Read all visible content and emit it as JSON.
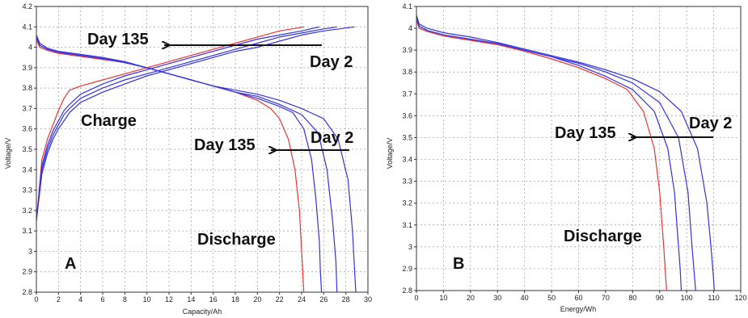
{
  "chart_data": [
    {
      "type": "line",
      "panel_label": "A",
      "xlabel": "Capacity/Ah",
      "ylabel": "Voltage/V",
      "xlim": [
        0,
        30
      ],
      "ylim": [
        2.8,
        4.2
      ],
      "xticks": [
        "0",
        "2",
        "4",
        "6",
        "8",
        "10",
        "12",
        "14",
        "16",
        "18",
        "20",
        "22",
        "24",
        "26",
        "28",
        "30"
      ],
      "yticks": [
        "2.8",
        "2.9",
        "3",
        "3.1",
        "3.2",
        "3.3",
        "3.4",
        "3.5",
        "3.6",
        "3.7",
        "3.8",
        "3.9",
        "4",
        "4.1",
        "4.2"
      ],
      "grid": true,
      "colors": {
        "day135": "#ee3333",
        "day2": "#3333dd"
      },
      "annotations": {
        "day135_charge": "Day 135",
        "day2_charge": "Day 2",
        "day135_discharge": "Day 135",
        "day2_discharge": "Day 2",
        "charge": "Charge",
        "discharge": "Discharge"
      },
      "series": [
        {
          "kind": "charge",
          "color_key": "day135",
          "x": [
            0,
            0.5,
            1,
            1.5,
            2,
            2.5,
            3,
            4,
            6,
            8,
            10,
            12,
            14,
            16,
            18,
            20,
            22,
            24.2
          ],
          "y": [
            3.15,
            3.45,
            3.55,
            3.62,
            3.69,
            3.75,
            3.79,
            3.81,
            3.84,
            3.87,
            3.9,
            3.93,
            3.96,
            3.99,
            4.02,
            4.05,
            4.08,
            4.1
          ]
        },
        {
          "kind": "charge",
          "color_key": "day2",
          "x": [
            0,
            0.5,
            1,
            1.5,
            2,
            2.5,
            3,
            4,
            6,
            8,
            10,
            12,
            14,
            16,
            18,
            20,
            22,
            24,
            25.6
          ],
          "y": [
            3.15,
            3.42,
            3.52,
            3.59,
            3.64,
            3.69,
            3.72,
            3.77,
            3.82,
            3.86,
            3.89,
            3.92,
            3.95,
            3.98,
            4.01,
            4.04,
            4.06,
            4.08,
            4.1
          ]
        },
        {
          "kind": "charge",
          "color_key": "day2",
          "x": [
            0,
            0.5,
            1,
            1.5,
            2,
            2.5,
            3,
            4,
            6,
            8,
            10,
            12,
            14,
            16,
            18,
            20,
            22,
            24,
            26,
            27.2
          ],
          "y": [
            3.15,
            3.4,
            3.5,
            3.57,
            3.62,
            3.67,
            3.7,
            3.75,
            3.8,
            3.84,
            3.87,
            3.9,
            3.93,
            3.96,
            3.99,
            4.02,
            4.05,
            4.07,
            4.09,
            4.1
          ]
        },
        {
          "kind": "charge",
          "color_key": "day2",
          "x": [
            0,
            0.5,
            1,
            1.5,
            2,
            2.5,
            3,
            4,
            6,
            8,
            10,
            12,
            14,
            16,
            18,
            20,
            22,
            24,
            26,
            28.8
          ],
          "y": [
            3.15,
            3.38,
            3.48,
            3.55,
            3.6,
            3.64,
            3.68,
            3.73,
            3.78,
            3.82,
            3.86,
            3.89,
            3.92,
            3.95,
            3.98,
            4.0,
            4.03,
            4.06,
            4.08,
            4.1
          ]
        },
        {
          "kind": "discharge",
          "color_key": "day135",
          "x": [
            0,
            0.3,
            1,
            2,
            4,
            6,
            8,
            10,
            12,
            14,
            16,
            18,
            20,
            21.2,
            22,
            22.8,
            23.4,
            23.8,
            24.0,
            24.1,
            24.2
          ],
          "y": [
            4.04,
            4.0,
            3.985,
            3.97,
            3.955,
            3.94,
            3.925,
            3.9,
            3.87,
            3.84,
            3.81,
            3.78,
            3.74,
            3.7,
            3.65,
            3.55,
            3.4,
            3.2,
            3.0,
            2.9,
            2.8
          ]
        },
        {
          "kind": "discharge",
          "color_key": "day2",
          "x": [
            0,
            0.3,
            1,
            2,
            4,
            6,
            8,
            10,
            12,
            14,
            16,
            18,
            20,
            22,
            23.2,
            24.2,
            24.9,
            25.3,
            25.6,
            25.7,
            25.8
          ],
          "y": [
            4.05,
            4.01,
            3.99,
            3.975,
            3.96,
            3.945,
            3.925,
            3.9,
            3.87,
            3.84,
            3.81,
            3.78,
            3.75,
            3.71,
            3.68,
            3.6,
            3.45,
            3.25,
            3.05,
            2.9,
            2.8
          ]
        },
        {
          "kind": "discharge",
          "color_key": "day2",
          "x": [
            0,
            0.3,
            1,
            2,
            4,
            6,
            8,
            10,
            12,
            14,
            16,
            18,
            20,
            22,
            24,
            25.5,
            26.3,
            26.8,
            27.1,
            27.2
          ],
          "y": [
            4.05,
            4.01,
            3.99,
            3.975,
            3.96,
            3.945,
            3.925,
            3.9,
            3.87,
            3.84,
            3.81,
            3.78,
            3.76,
            3.72,
            3.67,
            3.58,
            3.4,
            3.15,
            2.95,
            2.8
          ]
        },
        {
          "kind": "discharge",
          "color_key": "day2",
          "x": [
            0,
            0.3,
            1,
            2,
            4,
            6,
            8,
            10,
            12,
            14,
            16,
            18,
            20,
            22,
            24,
            26,
            27.3,
            28.2,
            28.6,
            28.8,
            28.9
          ],
          "y": [
            4.06,
            4.02,
            3.995,
            3.98,
            3.965,
            3.95,
            3.93,
            3.9,
            3.87,
            3.84,
            3.81,
            3.79,
            3.77,
            3.74,
            3.7,
            3.65,
            3.55,
            3.35,
            3.1,
            2.9,
            2.8
          ]
        }
      ]
    },
    {
      "type": "line",
      "panel_label": "B",
      "xlabel": "Energy/Wh",
      "ylabel": "Voltage/V",
      "xlim": [
        0,
        120
      ],
      "ylim": [
        2.8,
        4.1
      ],
      "xticks": [
        "0",
        "10",
        "20",
        "30",
        "40",
        "50",
        "60",
        "70",
        "80",
        "90",
        "100",
        "110",
        "120"
      ],
      "yticks": [
        "2.8",
        "2.9",
        "3",
        "3.1",
        "3.2",
        "3.3",
        "3.4",
        "3.5",
        "3.6",
        "3.7",
        "3.8",
        "3.9",
        "4",
        "4.1"
      ],
      "grid": true,
      "colors": {
        "day135": "#ee3333",
        "day2": "#3333dd"
      },
      "annotations": {
        "day135": "Day 135",
        "day2": "Day 2",
        "discharge": "Discharge"
      },
      "series": [
        {
          "kind": "discharge",
          "color_key": "day135",
          "x": [
            0,
            1,
            4,
            10,
            20,
            30,
            40,
            50,
            60,
            70,
            78,
            84,
            88,
            90,
            91.5,
            92.3,
            92.6
          ],
          "y": [
            4.04,
            4.0,
            3.985,
            3.965,
            3.945,
            3.925,
            3.895,
            3.86,
            3.82,
            3.77,
            3.72,
            3.62,
            3.45,
            3.25,
            3.0,
            2.85,
            2.8
          ]
        },
        {
          "kind": "discharge",
          "color_key": "day2",
          "x": [
            0,
            1,
            4,
            10,
            20,
            30,
            40,
            50,
            60,
            70,
            80,
            88,
            93,
            95.5,
            97,
            97.6,
            98
          ],
          "y": [
            4.05,
            4.01,
            3.99,
            3.97,
            3.95,
            3.93,
            3.9,
            3.87,
            3.83,
            3.78,
            3.72,
            3.62,
            3.45,
            3.25,
            3.0,
            2.9,
            2.8
          ]
        },
        {
          "kind": "discharge",
          "color_key": "day2",
          "x": [
            0,
            1,
            4,
            10,
            20,
            30,
            40,
            50,
            60,
            70,
            80,
            90,
            97,
            100.5,
            102,
            102.8,
            103.3
          ],
          "y": [
            4.05,
            4.01,
            3.99,
            3.97,
            3.95,
            3.93,
            3.9,
            3.87,
            3.84,
            3.8,
            3.75,
            3.66,
            3.5,
            3.25,
            3.0,
            2.88,
            2.8
          ]
        },
        {
          "kind": "discharge",
          "color_key": "day2",
          "x": [
            0,
            1,
            4,
            10,
            20,
            30,
            40,
            50,
            60,
            70,
            80,
            90,
            98,
            104,
            107.5,
            109,
            109.8,
            110.2
          ],
          "y": [
            4.06,
            4.02,
            4.0,
            3.98,
            3.96,
            3.935,
            3.905,
            3.875,
            3.845,
            3.81,
            3.77,
            3.71,
            3.62,
            3.45,
            3.2,
            3.0,
            2.88,
            2.8
          ]
        }
      ]
    }
  ]
}
